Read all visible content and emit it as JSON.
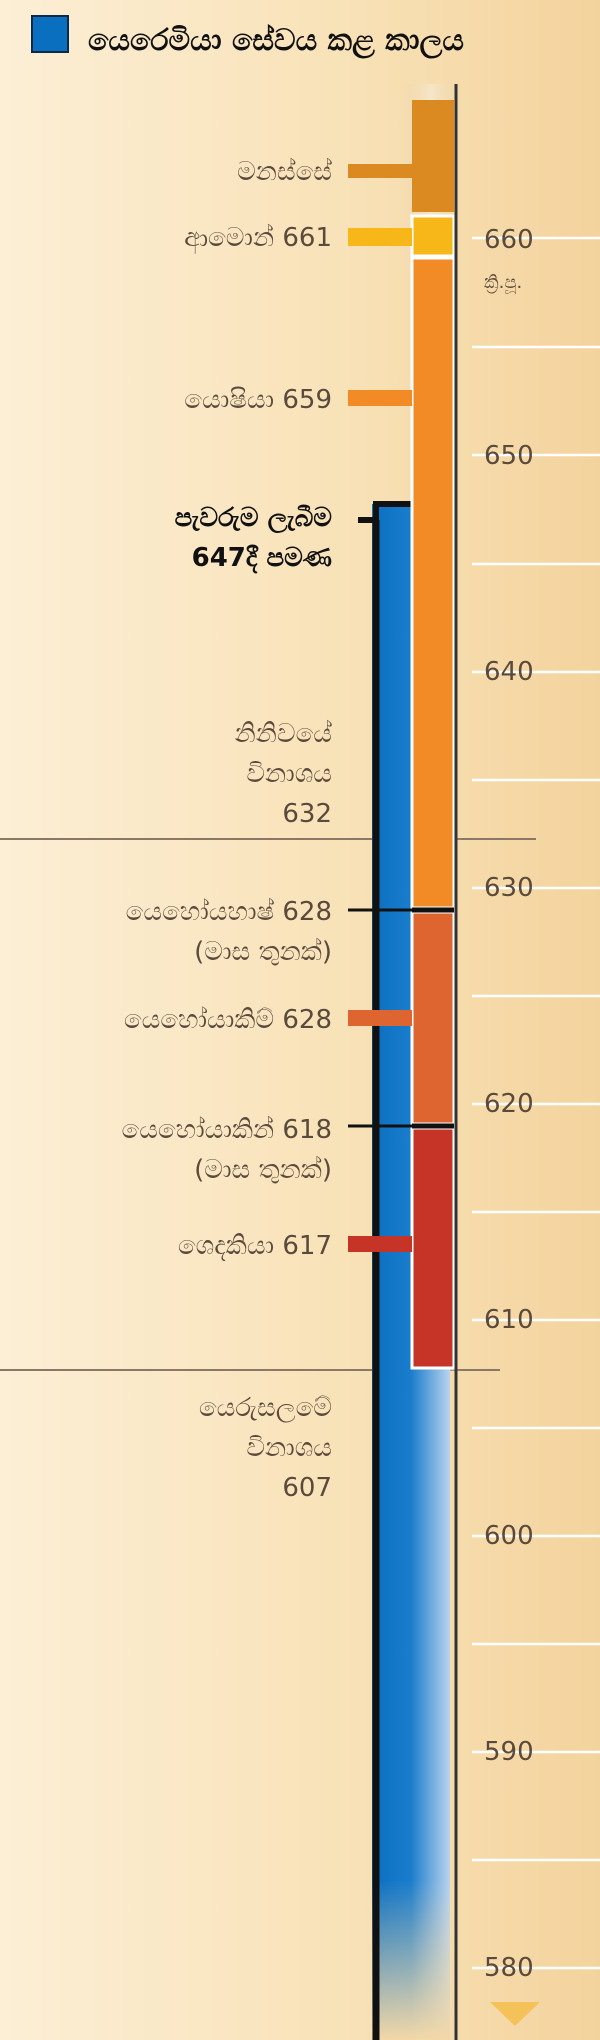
{
  "legend": {
    "label": "යෙරෙමියා සේවය කළ කාලය",
    "color": "#0b6fc0"
  },
  "era_label": "ක්‍රි.පූ.",
  "years": [
    "660",
    "650",
    "640",
    "630",
    "620",
    "610",
    "600",
    "590",
    "580"
  ],
  "kings": [
    {
      "label": "මනස්සේ",
      "color": "#db8a22"
    },
    {
      "label": "ආමොන් 661",
      "color": "#f7b718"
    },
    {
      "label": "යොෂියා 659",
      "color": "#f28b26"
    },
    {
      "label": "යෙහෝයහාෂ් 628",
      "sub": "(මාස තුනක්)"
    },
    {
      "label": "යෙහෝයාකිම් 628",
      "color": "#de6430"
    },
    {
      "label": "යෙහෝයාකින් 618",
      "sub": "(මාස තුනක්)"
    },
    {
      "label": "ශෙදකියා 617",
      "color": "#c63428"
    }
  ],
  "events": {
    "call": {
      "line1": "පැවරුම ලැබීම",
      "line2": "647දී පමණ"
    },
    "nineveh": {
      "line1": "නිනිවයේ",
      "line2": "විනාශය",
      "line3": "632"
    },
    "jerusalem": {
      "line1": "යෙරුසලමේ",
      "line2": "විනාශය",
      "line3": "607"
    }
  }
}
